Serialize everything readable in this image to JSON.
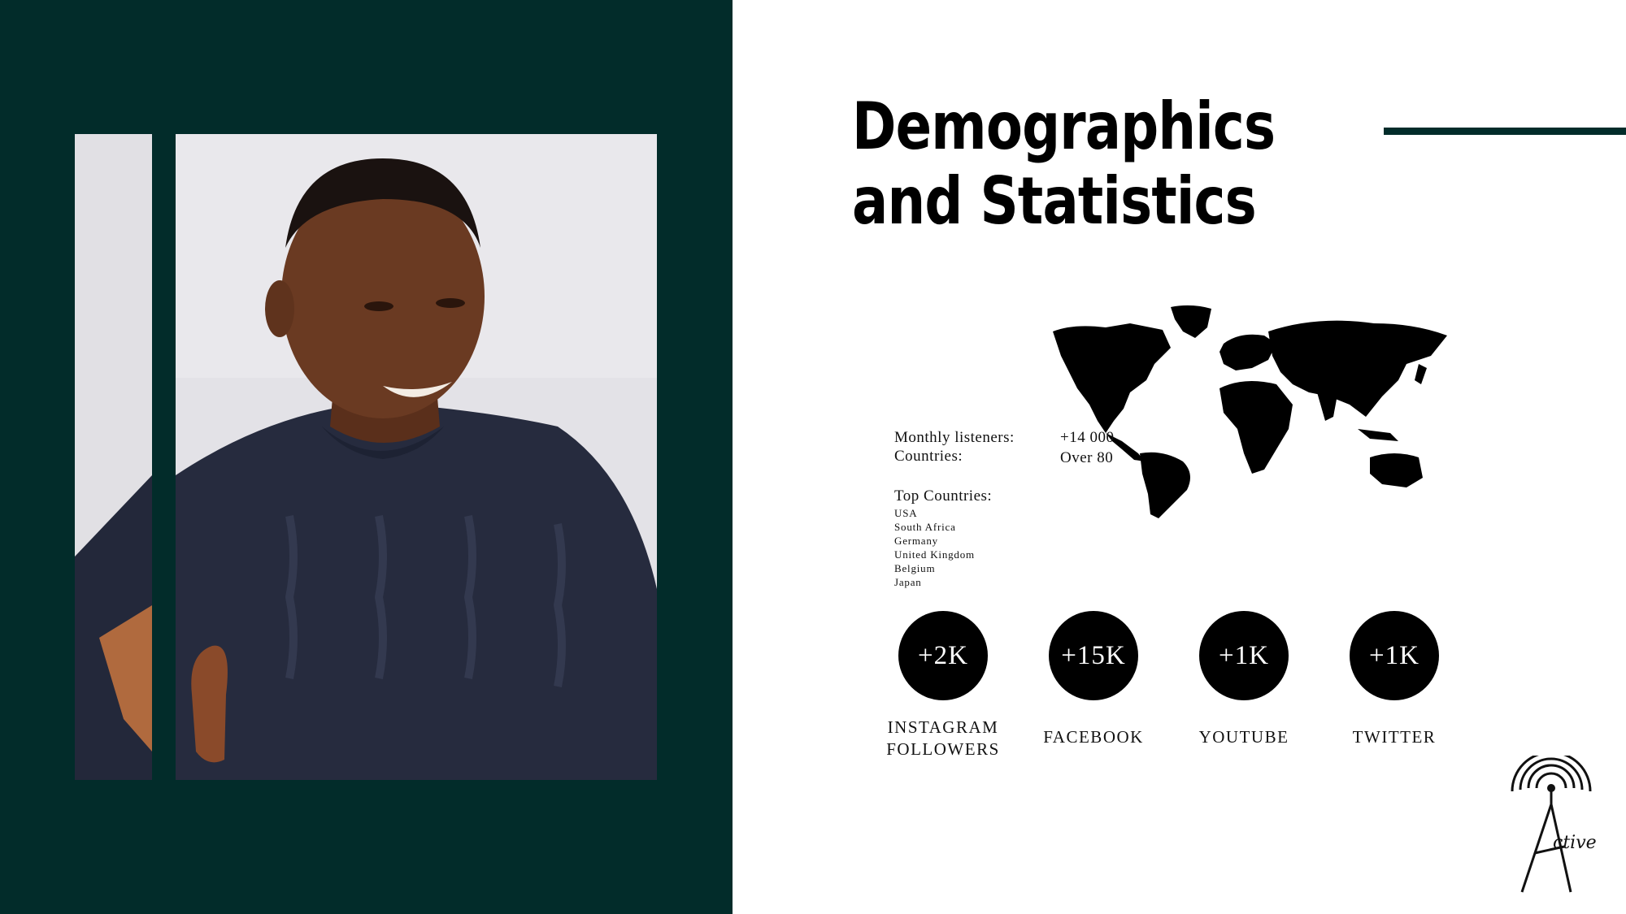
{
  "slide": {
    "title": "Demographics and Statistics"
  },
  "stats": {
    "monthly_listeners_label": "Monthly listeners:",
    "monthly_listeners_value": "+14 000",
    "countries_label": "Countries:",
    "countries_value": "Over 80"
  },
  "top_countries": {
    "heading": "Top Countries:",
    "items": [
      "USA",
      "South Africa",
      "Germany",
      "United Kingdom",
      "Belgium",
      "Japan"
    ]
  },
  "social": [
    {
      "count": "+2K",
      "label_line1": "INSTAGRAM",
      "label_line2": "FOLLOWERS"
    },
    {
      "count": "+15K",
      "label_line1": "FACEBOOK",
      "label_line2": ""
    },
    {
      "count": "+1K",
      "label_line1": "YOUTUBE",
      "label_line2": ""
    },
    {
      "count": "+1K",
      "label_line1": "TWITTER",
      "label_line2": ""
    }
  ],
  "logo": {
    "text": "ctive",
    "icon": "radio-tower-icon"
  },
  "colors": {
    "panel": "#022c2a",
    "accent": "#022c2a",
    "bubble": "#000000",
    "background": "#ffffff"
  }
}
